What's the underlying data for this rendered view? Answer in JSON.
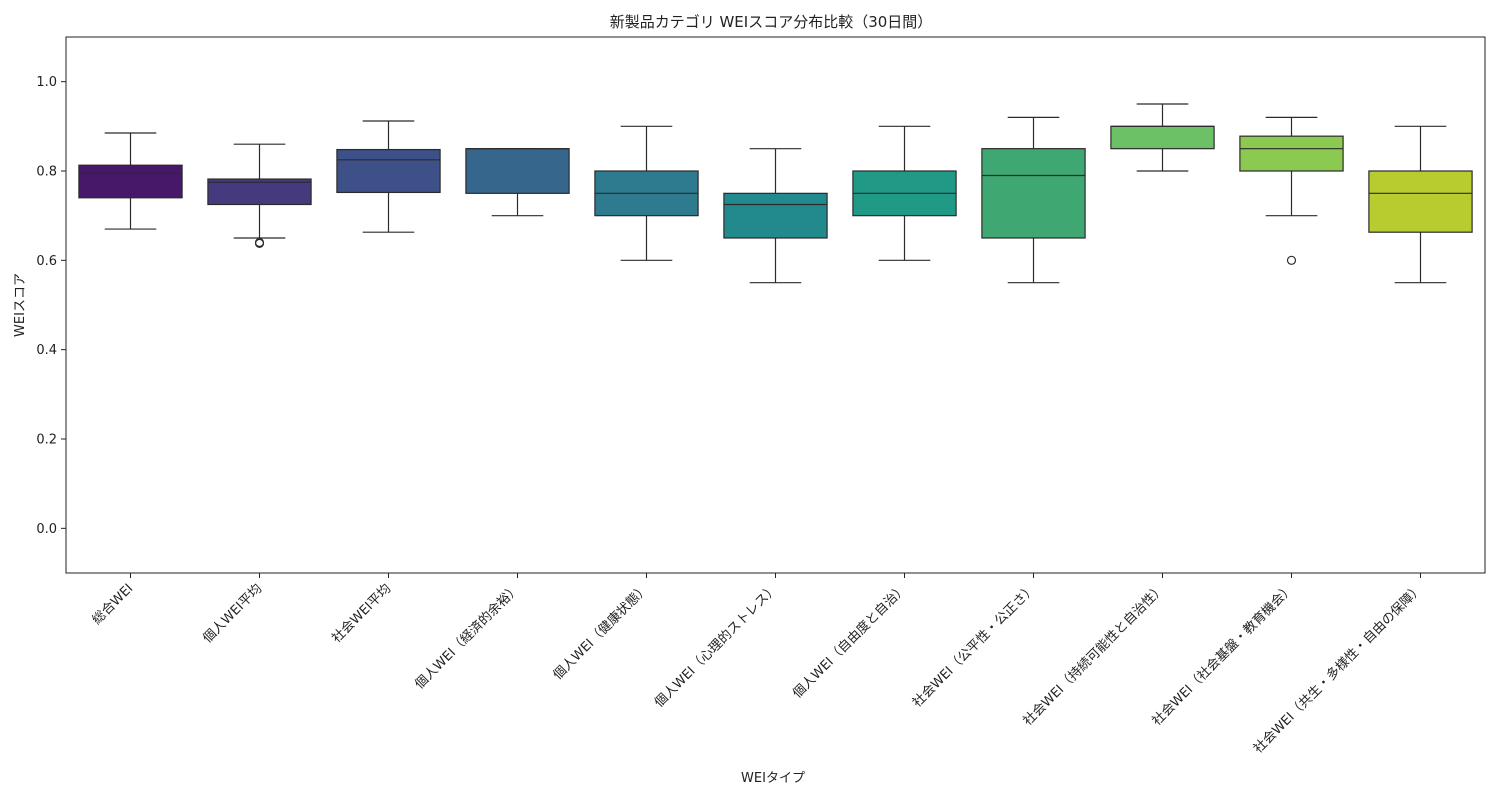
{
  "chart_data": {
    "type": "box",
    "title": "新製品カテゴリ WEIスコア分布比較（30日間）",
    "xlabel": "WEIタイプ",
    "ylabel": "WEIスコア",
    "ylim": [
      -0.1,
      1.1
    ],
    "yticks": [
      "0.0",
      "0.2",
      "0.4",
      "0.6",
      "0.8",
      "1.0"
    ],
    "grid": false,
    "categories": [
      "総合WEI",
      "個人WEI平均",
      "社会WEI平均",
      "個人WEI（経済的余裕）",
      "個人WEI（健康状態）",
      "個人WEI（心理的ストレス）",
      "個人WEI（自由度と自治）",
      "社会WEI（公平性・公正さ）",
      "社会WEI（持続可能性と自治性）",
      "社会WEI（社会基盤・教育機会）",
      "社会WEI（共生・多様性・自由の保障）"
    ],
    "boxes": [
      {
        "whisker_low": 0.67,
        "q1": 0.74,
        "median": 0.795,
        "q3": 0.813,
        "whisker_high": 0.885,
        "outliers": [],
        "color": "#47186a"
      },
      {
        "whisker_low": 0.65,
        "q1": 0.725,
        "median": 0.775,
        "q3": 0.782,
        "whisker_high": 0.86,
        "outliers": [
          0.638,
          0.64
        ],
        "color": "#463a7e"
      },
      {
        "whisker_low": 0.663,
        "q1": 0.752,
        "median": 0.825,
        "q3": 0.848,
        "whisker_high": 0.912,
        "outliers": [],
        "color": "#3e5088"
      },
      {
        "whisker_low": 0.7,
        "q1": 0.75,
        "median": 0.85,
        "q3": 0.85,
        "whisker_high": 0.85,
        "outliers": [],
        "color": "#36668c"
      },
      {
        "whisker_low": 0.6,
        "q1": 0.7,
        "median": 0.75,
        "q3": 0.8,
        "whisker_high": 0.9,
        "outliers": [],
        "color": "#2e7a8e"
      },
      {
        "whisker_low": 0.55,
        "q1": 0.65,
        "median": 0.725,
        "q3": 0.75,
        "whisker_high": 0.85,
        "outliers": [],
        "color": "#228a8d"
      },
      {
        "whisker_low": 0.6,
        "q1": 0.7,
        "median": 0.75,
        "q3": 0.8,
        "whisker_high": 0.9,
        "outliers": [],
        "color": "#209a86"
      },
      {
        "whisker_low": 0.55,
        "q1": 0.65,
        "median": 0.79,
        "q3": 0.85,
        "whisker_high": 0.92,
        "outliers": [],
        "color": "#3fa872"
      },
      {
        "whisker_low": 0.8,
        "q1": 0.85,
        "median": 0.9,
        "q3": 0.9,
        "whisker_high": 0.95,
        "outliers": [],
        "color": "#6cc066"
      },
      {
        "whisker_low": 0.7,
        "q1": 0.8,
        "median": 0.85,
        "q3": 0.878,
        "whisker_high": 0.92,
        "outliers": [
          0.6
        ],
        "color": "#8cc950"
      },
      {
        "whisker_low": 0.55,
        "q1": 0.663,
        "median": 0.75,
        "q3": 0.8,
        "whisker_high": 0.9,
        "outliers": [],
        "color": "#b8cc30"
      }
    ]
  }
}
